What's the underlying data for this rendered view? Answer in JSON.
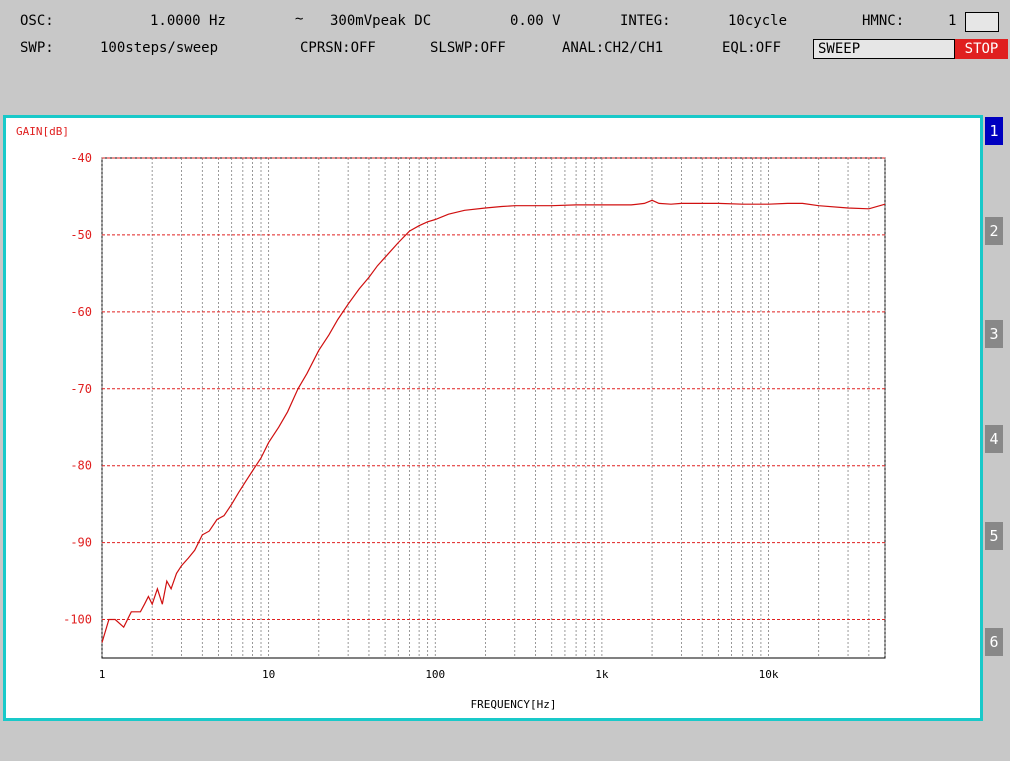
{
  "header": {
    "osc_label": "OSC:",
    "osc_freq": "1.0000 Hz",
    "wave_symbol": "∼",
    "osc_amp": "300mVpeak DC",
    "osc_dc": "0.00 V",
    "integ_label": "INTEG:",
    "integ_value": "10cycle",
    "hmnc_label": "HMNC:",
    "hmnc_value": "1",
    "swp_label": "SWP:",
    "swp_steps": "100steps/sweep",
    "cprsn": "CPRSN:OFF",
    "slswp": "SLSWP:OFF",
    "anal": "ANAL:CH2/CH1",
    "eql": "EQL:OFF",
    "sweep_status": "SWEEP",
    "stop_label": "STOP"
  },
  "tabs": [
    "1",
    "2",
    "3",
    "4",
    "5",
    "6"
  ],
  "active_tab": "1",
  "colors": {
    "trace": "#d01010",
    "grid_major": "#e02020",
    "grid_minor": "#808080",
    "panel_border": "#19c9c9"
  },
  "chart_data": {
    "type": "line",
    "ylabel": "GAIN[dB]",
    "xlabel": "FREQUENCY[Hz]",
    "x_scale": "log",
    "xlim": [
      1,
      50000
    ],
    "ylim": [
      -105,
      -40
    ],
    "y_ticks": [
      -40,
      -50,
      -60,
      -70,
      -80,
      -90,
      -100
    ],
    "x_ticks": [
      {
        "value": 1,
        "label": "1"
      },
      {
        "value": 10,
        "label": "10"
      },
      {
        "value": 100,
        "label": "100"
      },
      {
        "value": 1000,
        "label": "1k"
      },
      {
        "value": 10000,
        "label": "10k"
      }
    ],
    "grid": true,
    "series": [
      {
        "x": [
          1,
          1.1,
          1.2,
          1.35,
          1.5,
          1.6,
          1.7,
          1.8,
          1.9,
          2.0,
          2.15,
          2.3,
          2.45,
          2.6,
          2.8,
          3.0,
          3.3,
          3.6,
          4.0,
          4.4,
          4.9,
          5.4,
          6.0,
          6.6,
          7.3,
          8.1,
          9,
          10,
          11.5,
          13,
          15,
          17,
          20,
          23,
          26,
          30,
          35,
          40,
          45,
          52,
          60,
          70,
          80,
          90,
          100,
          120,
          150,
          200,
          250,
          300,
          400,
          500,
          700,
          1000,
          1500,
          1800,
          2000,
          2200,
          2600,
          3000,
          4000,
          5000,
          7000,
          10000,
          13000,
          16000,
          20000,
          30000,
          40000,
          50000
        ],
        "y": [
          -103,
          -100,
          -100,
          -101,
          -99,
          -99,
          -99,
          -98,
          -97,
          -98,
          -96,
          -98,
          -95,
          -96,
          -94,
          -93,
          -92,
          -91,
          -89,
          -88.5,
          -87,
          -86.5,
          -85,
          -83.5,
          -82,
          -80.5,
          -79,
          -77,
          -75,
          -73,
          -70,
          -68,
          -65,
          -63,
          -61,
          -59,
          -57,
          -55.5,
          -54,
          -52.5,
          -51,
          -49.5,
          -48.8,
          -48.3,
          -48,
          -47.3,
          -46.8,
          -46.5,
          -46.3,
          -46.2,
          -46.2,
          -46.2,
          -46.1,
          -46.1,
          -46.1,
          -45.9,
          -45.5,
          -45.9,
          -46.0,
          -45.9,
          -45.9,
          -45.9,
          -46.0,
          -46.0,
          -45.9,
          -45.9,
          -46.2,
          -46.5,
          -46.6,
          -46.0
        ]
      }
    ]
  }
}
